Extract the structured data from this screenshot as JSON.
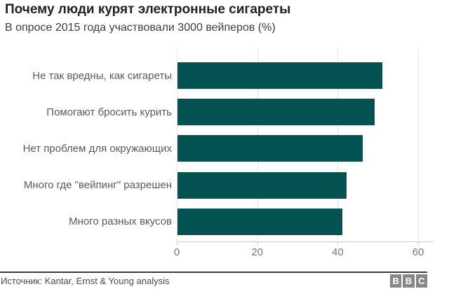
{
  "header": {
    "title": "Почему люди курят электронные сигареты",
    "subtitle": "В опросе 2015 года участвовали 3000 вейперов (%)"
  },
  "chart_data": {
    "type": "bar",
    "orientation": "horizontal",
    "title": "Почему люди курят электронные сигареты",
    "subtitle": "В опросе 2015 года участвовали 3000 вейперов (%)",
    "categories": [
      "Не так вредны, как сигареты",
      "Помогают бросить курить",
      "Нет проблем для окружающих",
      "Много где \"вейпинг\" разрешен",
      "Много разных вкусов"
    ],
    "values": [
      51,
      49,
      46,
      42,
      41
    ],
    "unit": "%",
    "xlabel": "",
    "ylabel": "",
    "xlim": [
      0,
      64
    ],
    "xticks": [
      0,
      20,
      40,
      60
    ],
    "grid": true,
    "legend": "none",
    "bar_color": "#045352"
  },
  "footer": {
    "source": "Источник: Kantar, Ernst & Young analysis",
    "logo_letters": [
      "B",
      "B",
      "C"
    ]
  },
  "colors": {
    "bar": "#045352",
    "gridline": "#e3e3e3",
    "axis_line": "#c8c8c8",
    "title_text": "#212121",
    "subtitle_text": "#3d3d3d",
    "category_label_text": "#5a5a5a",
    "tick_label_text": "#757575",
    "divider": "#3e3e3e",
    "source_text": "#4a4a4a",
    "logo_block": "#878787",
    "background": "#ffffff"
  }
}
